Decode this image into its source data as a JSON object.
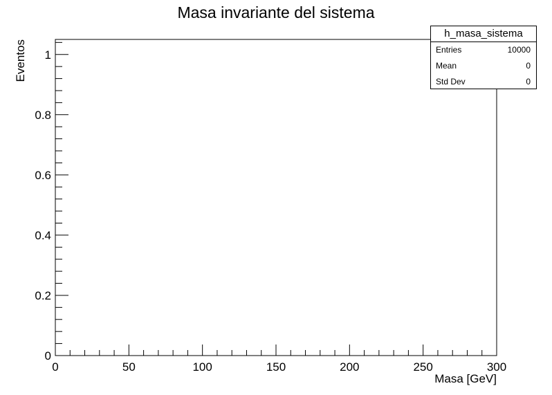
{
  "chart_data": {
    "type": "bar",
    "title": "Masa invariante del sistema",
    "xlabel": "Masa [GeV]",
    "ylabel": "Eventos",
    "xlim": [
      0,
      300
    ],
    "ylim": [
      0,
      1.05
    ],
    "x_ticks": [
      "0",
      "50",
      "100",
      "150",
      "200",
      "250",
      "300"
    ],
    "y_ticks": [
      "0",
      "0.2",
      "0.4",
      "0.6",
      "0.8",
      "1"
    ],
    "series": [],
    "grid": false,
    "stats_box": {
      "name": "h_masa_sistema",
      "rows": [
        {
          "label": "Entries",
          "value": "10000"
        },
        {
          "label": "Mean",
          "value": "0"
        },
        {
          "label": "Std Dev",
          "value": "0"
        }
      ]
    }
  }
}
